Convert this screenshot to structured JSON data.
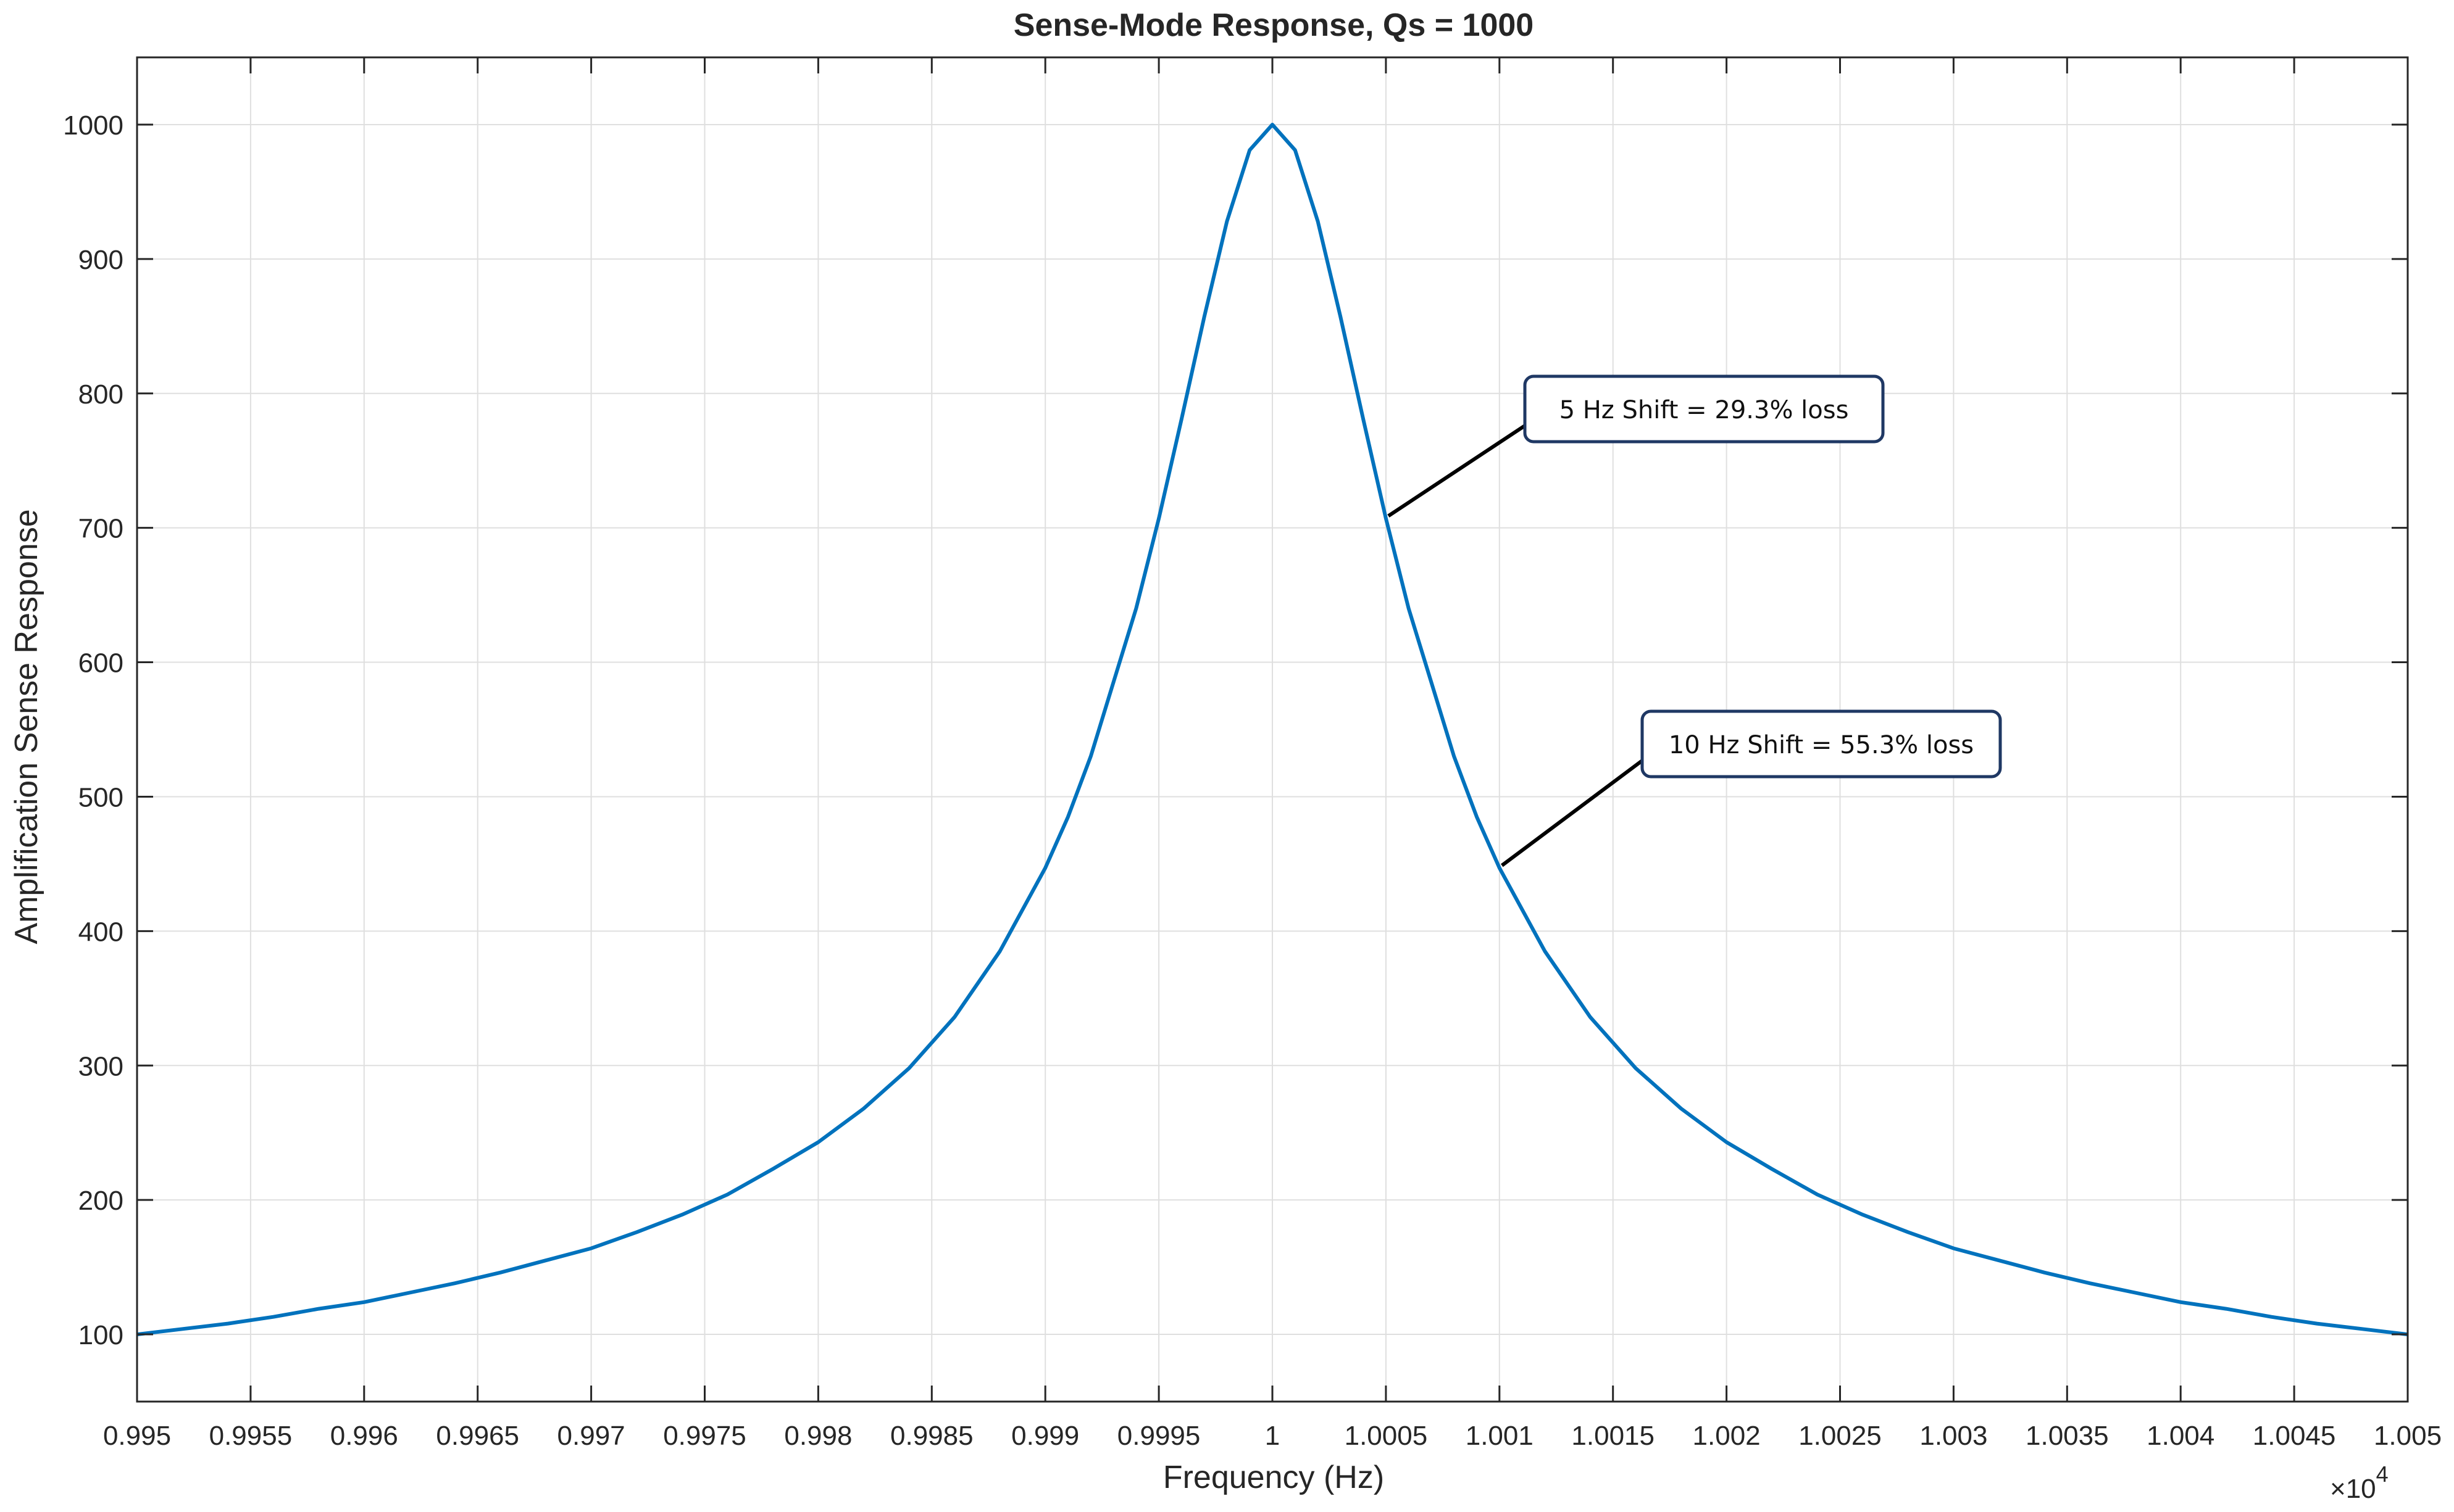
{
  "chart_data": {
    "type": "line",
    "title": "Sense-Mode Response, Qs = 1000",
    "xlabel": "Frequency (Hz)",
    "ylabel": "Amplification Sense Response",
    "x_exponent_label": "×10",
    "x_exponent_power": "4",
    "xlim": [
      9950,
      10050
    ],
    "ylim": [
      50,
      1050
    ],
    "grid": true,
    "x_ticks": [
      {
        "value": 9950,
        "label": "0.995"
      },
      {
        "value": 9955,
        "label": "0.9955"
      },
      {
        "value": 9960,
        "label": "0.996"
      },
      {
        "value": 9965,
        "label": "0.9965"
      },
      {
        "value": 9970,
        "label": "0.997"
      },
      {
        "value": 9975,
        "label": "0.9975"
      },
      {
        "value": 9980,
        "label": "0.998"
      },
      {
        "value": 9985,
        "label": "0.9985"
      },
      {
        "value": 9990,
        "label": "0.999"
      },
      {
        "value": 9995,
        "label": "0.9995"
      },
      {
        "value": 10000,
        "label": "1"
      },
      {
        "value": 10005,
        "label": "1.0005"
      },
      {
        "value": 10010,
        "label": "1.001"
      },
      {
        "value": 10015,
        "label": "1.0015"
      },
      {
        "value": 10020,
        "label": "1.002"
      },
      {
        "value": 10025,
        "label": "1.0025"
      },
      {
        "value": 10030,
        "label": "1.003"
      },
      {
        "value": 10035,
        "label": "1.0035"
      },
      {
        "value": 10040,
        "label": "1.004"
      },
      {
        "value": 10045,
        "label": "1.0045"
      },
      {
        "value": 10050,
        "label": "1.005"
      }
    ],
    "y_ticks": [
      {
        "value": 100,
        "label": "100"
      },
      {
        "value": 200,
        "label": "200"
      },
      {
        "value": 300,
        "label": "300"
      },
      {
        "value": 400,
        "label": "400"
      },
      {
        "value": 500,
        "label": "500"
      },
      {
        "value": 600,
        "label": "600"
      },
      {
        "value": 700,
        "label": "700"
      },
      {
        "value": 800,
        "label": "800"
      },
      {
        "value": 900,
        "label": "900"
      },
      {
        "value": 1000,
        "label": "1000"
      }
    ],
    "series": [
      {
        "color": "#0072BD",
        "x": [
          9950,
          9952,
          9954,
          9956,
          9958,
          9960,
          9962,
          9964,
          9966,
          9968,
          9970,
          9972,
          9974,
          9976,
          9978,
          9980,
          9982,
          9984,
          9986,
          9988,
          9990,
          9991,
          9992,
          9993,
          9994,
          9995,
          9996,
          9997,
          9998,
          9999,
          10000,
          10001,
          10002,
          10003,
          10004,
          10005,
          10006,
          10007,
          10008,
          10009,
          10010,
          10012,
          10014,
          10016,
          10018,
          10020,
          10022,
          10024,
          10026,
          10028,
          10030,
          10032,
          10034,
          10036,
          10038,
          10040,
          10042,
          10044,
          10046,
          10048,
          10050
        ],
        "y": [
          100,
          104,
          108,
          113,
          119,
          124,
          131,
          138,
          146,
          155,
          164,
          176,
          189,
          204,
          223,
          243,
          268,
          298,
          336,
          385,
          447,
          485,
          530,
          585,
          640,
          707,
          781,
          857,
          928,
          981,
          1000,
          981,
          928,
          857,
          781,
          707,
          640,
          585,
          530,
          485,
          447,
          385,
          336,
          298,
          268,
          243,
          223,
          204,
          189,
          176,
          164,
          155,
          146,
          138,
          131,
          124,
          119,
          113,
          108,
          104,
          100
        ]
      }
    ],
    "annotations": [
      {
        "text": "5 Hz Shift = 29.3% loss",
        "point_x": 10005,
        "point_y": 707
      },
      {
        "text": "10 Hz Shift = 55.3% loss",
        "point_x": 10010,
        "point_y": 447
      }
    ]
  },
  "colors": {
    "line": "#0072BD",
    "grid": "#dfdfdf",
    "axes": "#262626",
    "callout_border": "#1f3864"
  }
}
